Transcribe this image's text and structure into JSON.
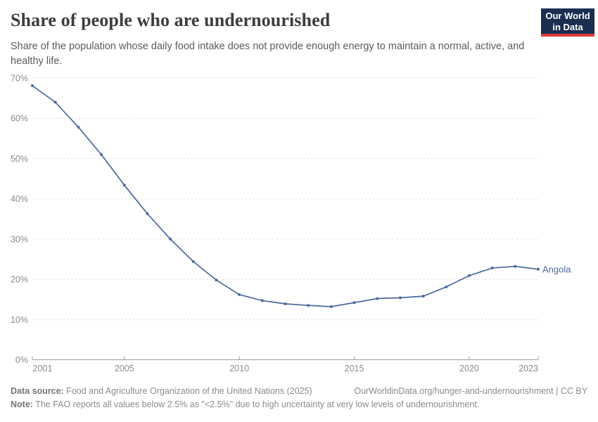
{
  "header": {
    "title": "Share of people who are undernourished",
    "subtitle": "Share of the population whose daily food intake does not provide enough energy to maintain a normal, active, and healthy life.",
    "logo": {
      "line1": "Our World",
      "line2": "in Data",
      "bg_color": "#1B2E50",
      "bar_color": "#DC3D33"
    }
  },
  "chart_data": {
    "type": "line",
    "title": "Share of people who are undernourished",
    "xlabel": "",
    "ylabel": "",
    "xlim": [
      2001,
      2023
    ],
    "ylim": [
      0,
      70
    ],
    "grid": "horizontal-dashed",
    "legend_position": "end-of-line-label",
    "x": [
      2001,
      2002,
      2003,
      2004,
      2005,
      2006,
      2007,
      2008,
      2009,
      2010,
      2011,
      2012,
      2013,
      2014,
      2015,
      2016,
      2017,
      2018,
      2019,
      2020,
      2021,
      2022,
      2023
    ],
    "series": [
      {
        "name": "Angola",
        "color": "#4C6A9C",
        "values": [
          68.1,
          64.0,
          57.8,
          51.0,
          43.4,
          36.3,
          30.0,
          24.4,
          19.8,
          16.2,
          14.7,
          13.9,
          13.5,
          13.2,
          14.2,
          15.2,
          15.4,
          15.8,
          18.1,
          20.9,
          22.8,
          23.2,
          22.5
        ]
      }
    ],
    "x_ticks": [
      2001,
      2005,
      2010,
      2015,
      2020,
      2023
    ],
    "y_ticks": [
      {
        "value": 0,
        "label": "0%"
      },
      {
        "value": 10,
        "label": "10%"
      },
      {
        "value": 20,
        "label": "20%"
      },
      {
        "value": 30,
        "label": "30%"
      },
      {
        "value": 40,
        "label": "40%"
      },
      {
        "value": 50,
        "label": "50%"
      },
      {
        "value": 60,
        "label": "60%"
      },
      {
        "value": 70,
        "label": "70%"
      }
    ]
  },
  "footer": {
    "datasource_label": "Data source:",
    "datasource_text": " Food and Agriculture Organization of the United Nations (2025)",
    "attribution": "OurWorldinData.org/hunger-and-undernourishment | CC BY",
    "note_label": "Note:",
    "note_text": " The FAO reports all values below 2.5% as \"<2.5%\" due to high uncertainty at very low levels of undernourishment."
  }
}
